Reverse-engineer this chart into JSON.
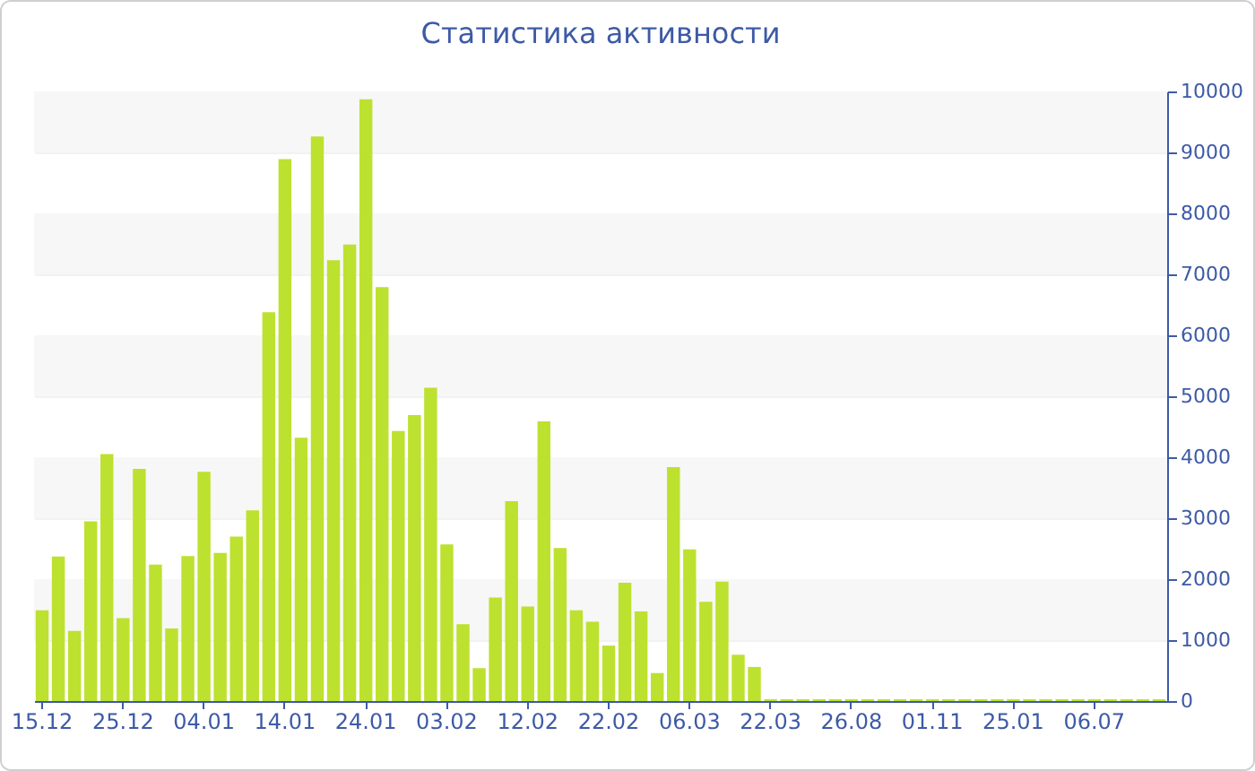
{
  "chart_data": {
    "type": "bar",
    "title": "Статистика активности",
    "categories": [
      "15.12",
      null,
      null,
      null,
      null,
      "25.12",
      null,
      null,
      null,
      null,
      "04.01",
      null,
      null,
      null,
      null,
      "14.01",
      null,
      null,
      null,
      null,
      "24.01",
      null,
      null,
      null,
      null,
      "03.02",
      null,
      null,
      null,
      null,
      "12.02",
      null,
      null,
      null,
      null,
      "22.02",
      null,
      null,
      null,
      null,
      "06.03",
      null,
      null,
      null,
      null,
      "22.03",
      null,
      null,
      null,
      null,
      "26.08",
      null,
      null,
      null,
      null,
      "01.11",
      null,
      null,
      null,
      null,
      "25.01",
      null,
      null,
      null,
      null,
      "06.07",
      null,
      null,
      null,
      null
    ],
    "values": [
      1490,
      2370,
      1150,
      2950,
      4050,
      1360,
      3810,
      2240,
      1190,
      2380,
      3760,
      2430,
      2700,
      3130,
      6380,
      8890,
      4320,
      9260,
      7230,
      7490,
      9870,
      6790,
      4430,
      4690,
      5140,
      2570,
      1260,
      540,
      1700,
      3280,
      1550,
      4590,
      2510,
      1490,
      1300,
      910,
      1940,
      1470,
      460,
      3840,
      2490,
      1630,
      1960,
      760,
      560,
      30,
      30,
      30,
      30,
      30,
      30,
      30,
      30,
      30,
      30,
      30,
      30,
      30,
      30,
      30,
      30,
      30,
      30,
      30,
      30,
      30,
      30,
      30,
      30,
      30
    ],
    "color": "#bde12f",
    "ylim": [
      0,
      10000
    ],
    "yticks": [
      0,
      1000,
      2000,
      3000,
      4000,
      5000,
      6000,
      7000,
      8000,
      9000,
      10000
    ],
    "grid": true
  }
}
